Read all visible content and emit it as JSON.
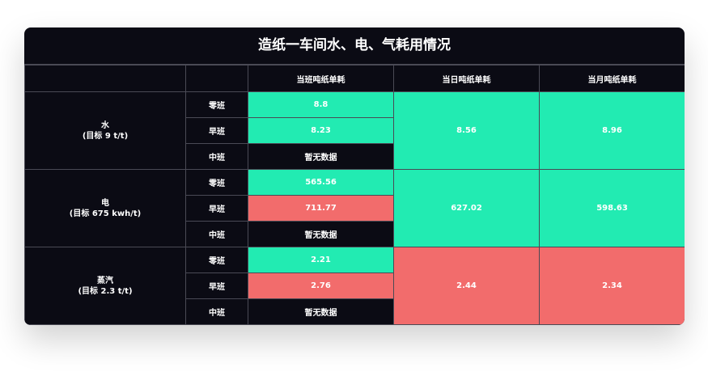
{
  "title": "造纸一车间水、电、气耗用情况",
  "colors": {
    "good": "#22ebb2",
    "bad": "#f26c6c",
    "background": "#0b0b14"
  },
  "headers": {
    "blank1": "",
    "blank2": "",
    "shift": "当班吨纸单耗",
    "day": "当日吨纸单耗",
    "month": "当月吨纸单耗"
  },
  "categories": [
    {
      "name": "水",
      "target": "(目标 9 t/t)",
      "day": "8.56",
      "day_status": "good",
      "month": "8.96",
      "month_status": "good",
      "shifts": [
        {
          "label": "零班",
          "value": "8.8",
          "status": "good"
        },
        {
          "label": "早班",
          "value": "8.23",
          "status": "good"
        },
        {
          "label": "中班",
          "value": "暂无数据",
          "status": "none"
        }
      ]
    },
    {
      "name": "电",
      "target": "(目标 675 kwh/t)",
      "day": "627.02",
      "day_status": "good",
      "month": "598.63",
      "month_status": "good",
      "shifts": [
        {
          "label": "零班",
          "value": "565.56",
          "status": "good"
        },
        {
          "label": "早班",
          "value": "711.77",
          "status": "bad"
        },
        {
          "label": "中班",
          "value": "暂无数据",
          "status": "none"
        }
      ]
    },
    {
      "name": "蒸汽",
      "target": "(目标 2.3 t/t)",
      "day": "2.44",
      "day_status": "bad",
      "month": "2.34",
      "month_status": "bad",
      "shifts": [
        {
          "label": "零班",
          "value": "2.21",
          "status": "good"
        },
        {
          "label": "早班",
          "value": "2.76",
          "status": "bad"
        },
        {
          "label": "中班",
          "value": "暂无数据",
          "status": "none"
        }
      ]
    }
  ]
}
